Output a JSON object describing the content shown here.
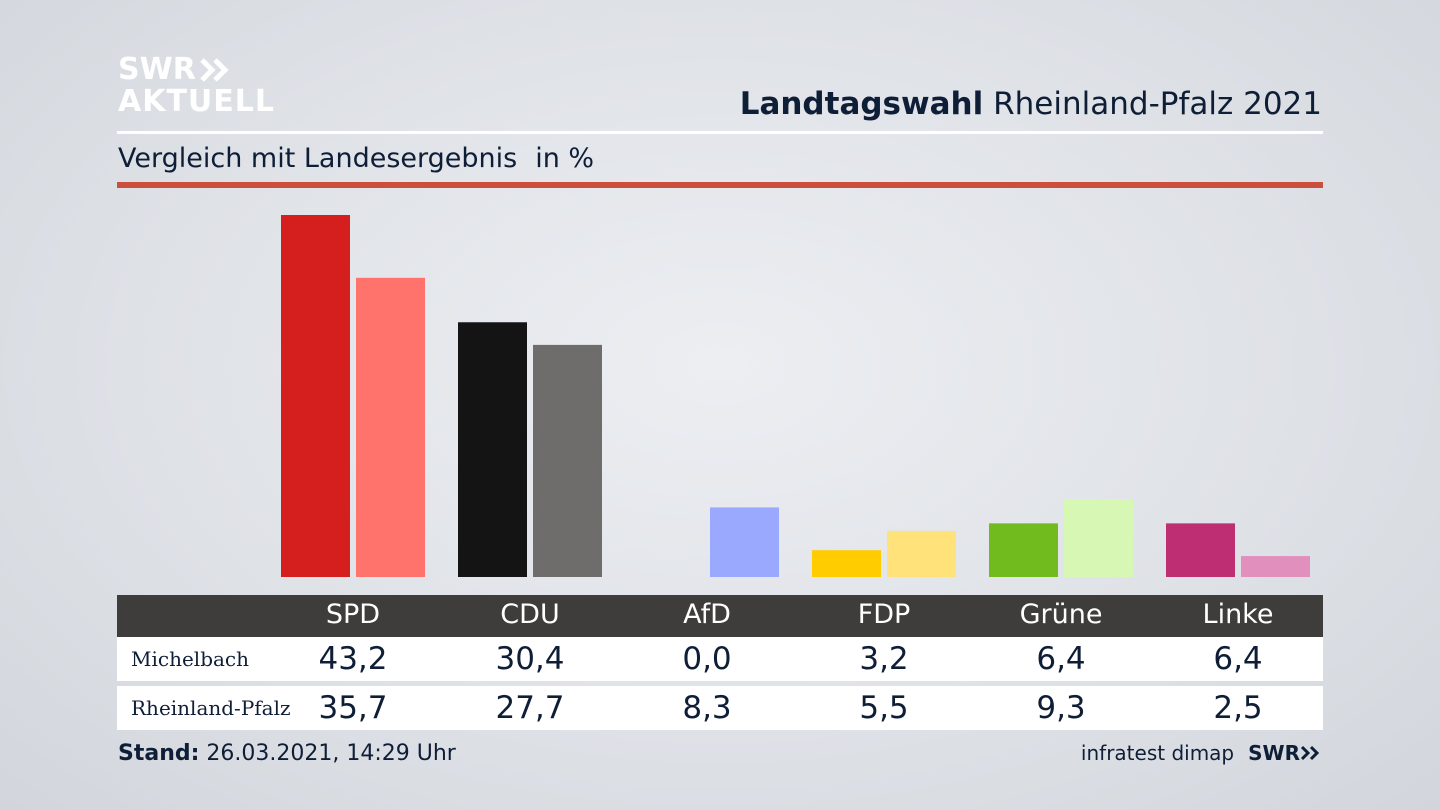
{
  "brand": {
    "logo_line1": "SWR",
    "logo_line2": "AKTUELL",
    "footer_logo": "SWR"
  },
  "header": {
    "title_bold": "Landtagswahl",
    "title_rest": " Rheinland-Pfalz 2021"
  },
  "subtitle": {
    "text": "Vergleich mit Landesergebnis",
    "unit": "in %"
  },
  "footer": {
    "stand_label": "Stand:",
    "stand_value": " 26.03.2021, 14:29 Uhr",
    "source": "infratest dimap"
  },
  "chart_data": {
    "type": "bar",
    "title": "Landtagswahl Rheinland-Pfalz 2021",
    "subtitle": "Vergleich mit Landesergebnis",
    "unit": "in %",
    "categories": [
      "SPD",
      "CDU",
      "AfD",
      "FDP",
      "Grüne",
      "Linke"
    ],
    "series": [
      {
        "name": "Michelbach",
        "values": [
          43.2,
          30.4,
          0.0,
          3.2,
          6.4,
          6.4
        ],
        "display": [
          "43,2",
          "30,4",
          "0,0",
          "3,2",
          "6,4",
          "6,4"
        ],
        "colors": [
          "#d41f1e",
          "#141414",
          "#0b74c4",
          "#ffcc00",
          "#72bb1e",
          "#be2e72"
        ]
      },
      {
        "name": "Rheinland-Pfalz",
        "values": [
          35.7,
          27.7,
          8.3,
          5.5,
          9.3,
          2.5
        ],
        "display": [
          "35,7",
          "27,7",
          "8,3",
          "5,5",
          "9,3",
          "2,5"
        ],
        "colors": [
          "#ff736c",
          "#6e6d6b",
          "#9aa9fd",
          "#ffe37a",
          "#d7f7b4",
          "#e190be"
        ]
      }
    ],
    "ylim": [
      0,
      45
    ],
    "grid": false,
    "legend": "table-bottom"
  }
}
